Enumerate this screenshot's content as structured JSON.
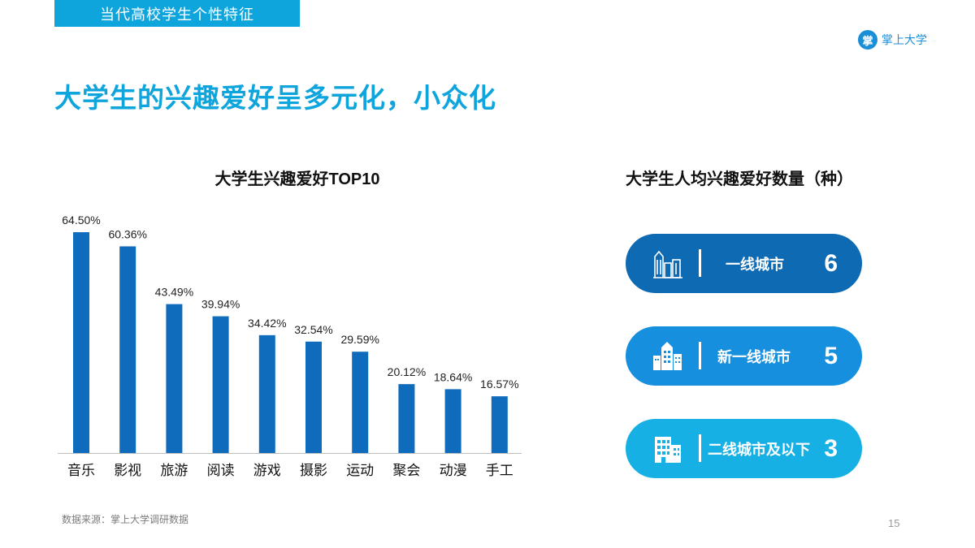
{
  "header": {
    "section_tag": "当代高校学生个性特征",
    "brand_name": "掌上大学",
    "brand_logo_glyph": "掌"
  },
  "headline": "大学生的兴趣爱好呈多元化，小众化",
  "left_chart": {
    "title": "大学生兴趣爱好TOP10"
  },
  "chart_data": {
    "type": "bar",
    "title": "大学生兴趣爱好TOP10",
    "categories": [
      "音乐",
      "影视",
      "旅游",
      "阅读",
      "游戏",
      "摄影",
      "运动",
      "聚会",
      "动漫",
      "手工"
    ],
    "values": [
      64.5,
      60.36,
      43.49,
      39.94,
      34.42,
      32.54,
      29.59,
      20.12,
      18.64,
      16.57
    ],
    "value_labels": [
      "64.50%",
      "60.36%",
      "43.49%",
      "39.94%",
      "34.42%",
      "32.54%",
      "29.59%",
      "20.12%",
      "18.64%",
      "16.57%"
    ],
    "ylim": [
      0,
      70
    ],
    "grid": false,
    "bar_color": "#0f6cbd"
  },
  "right_panel": {
    "title": "大学生人均兴趣爱好数量（种）",
    "items": [
      {
        "label": "一线城市",
        "value": "6",
        "color": "#0e6ab3",
        "icon": "skyscrapers-icon"
      },
      {
        "label": "新一线城市",
        "value": "5",
        "color": "#1690de",
        "icon": "city-buildings-icon"
      },
      {
        "label": "二线城市及以下",
        "value": "3",
        "color": "#17b0e4",
        "icon": "office-building-icon"
      }
    ]
  },
  "footer": {
    "source": "数据来源：掌上大学调研数据",
    "page_number": "15"
  }
}
